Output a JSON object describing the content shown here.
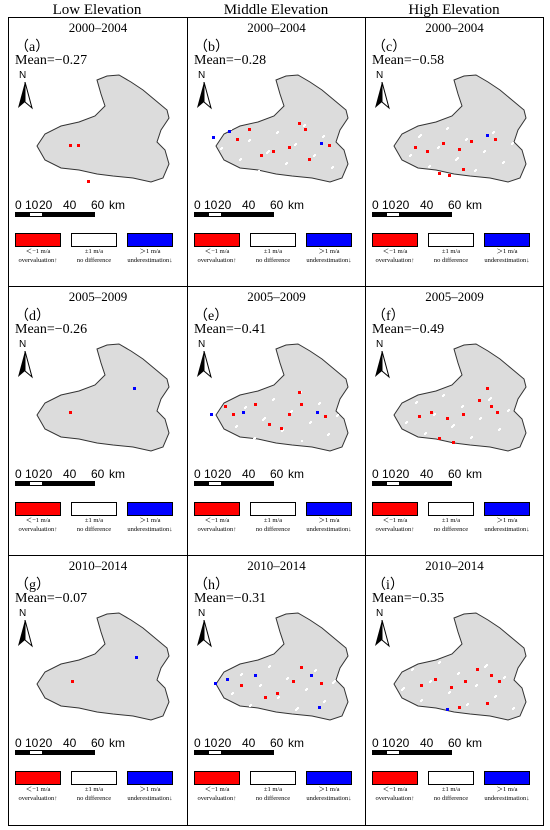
{
  "column_headers": [
    "Low Elevation",
    "Middle Elevation",
    "High Elevation"
  ],
  "panels": [
    {
      "letter": "（a）",
      "period": "2000–2004",
      "mean": "Mean=−0.27"
    },
    {
      "letter": "（b）",
      "period": "2000–2004",
      "mean": "Mean=−0.28"
    },
    {
      "letter": "（c）",
      "period": "2000–2004",
      "mean": "Mean=−0.58"
    },
    {
      "letter": "（d）",
      "period": "2005–2009",
      "mean": "Mean=−0.26"
    },
    {
      "letter": "（e）",
      "period": "2005–2009",
      "mean": "Mean=−0.41"
    },
    {
      "letter": "（f）",
      "period": "2005–2009",
      "mean": "Mean=−0.49"
    },
    {
      "letter": "（g）",
      "period": "2010–2014",
      "mean": "Mean=−0.07"
    },
    {
      "letter": "（h）",
      "period": "2010–2014",
      "mean": "Mean=−0.31"
    },
    {
      "letter": "（i）",
      "period": "2010–2014",
      "mean": "Mean=−0.35"
    }
  ],
  "north_label": "N",
  "scale_bar": {
    "ticks": [
      "0",
      "10",
      "20",
      "40",
      "60"
    ],
    "unit": "km"
  },
  "legend": [
    {
      "range": "＜−1 m/a",
      "label": "overvaluation↑",
      "color": "#ff0000"
    },
    {
      "range": "±1 m/a",
      "label": "no difference",
      "color": "#ffffff"
    },
    {
      "range": "＞1 m/a",
      "label": "underestimation↓",
      "color": "#0000ff"
    }
  ],
  "colors": {
    "basin_fill": "#dcdcdc",
    "basin_outline": "#333333"
  }
}
